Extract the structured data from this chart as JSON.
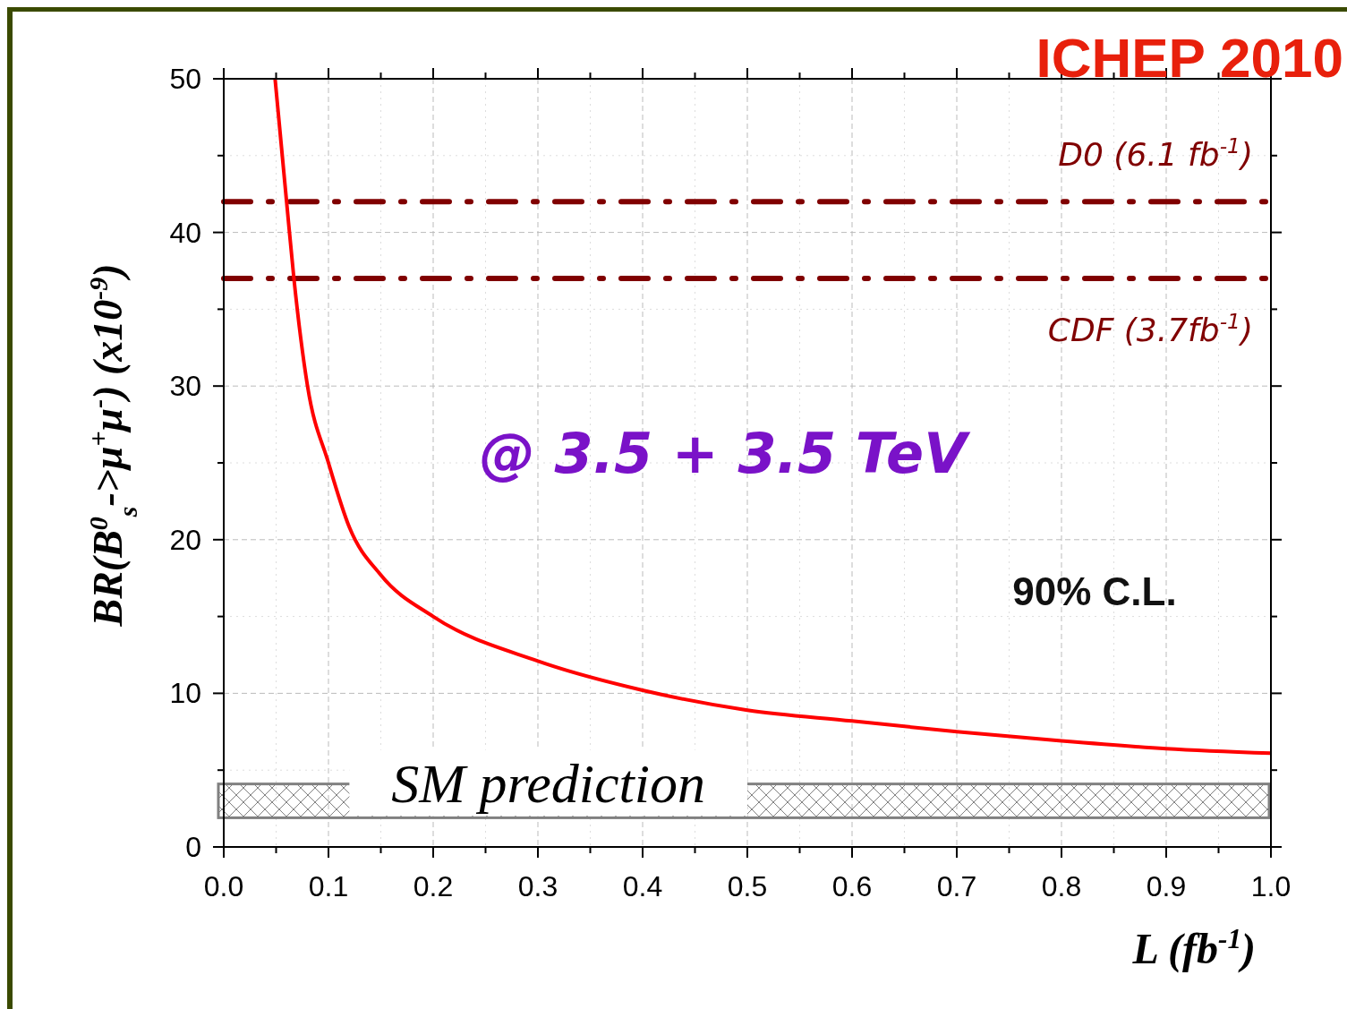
{
  "chart_data": {
    "type": "line",
    "title": "ICHEP 2010",
    "xlabel": "L (fb$^{-1}$)",
    "ylabel": "BR(B$^{0}$$_{s}$->μ$^{+}$μ$^{-}$)  (x10$^{-9}$)",
    "annotations": [
      "@ 3.5 + 3.5 TeV",
      "90% C.L."
    ],
    "x": [
      0.049,
      0.06,
      0.067,
      0.08,
      0.1,
      0.12,
      0.15,
      0.2,
      0.3,
      0.4,
      0.5,
      0.6,
      0.7,
      0.8,
      0.9,
      1.0
    ],
    "series": [
      {
        "color": "#ff0000",
        "values": [
          50,
          42,
          37,
          30,
          25,
          20.8,
          17.7,
          15,
          12.1,
          10.2,
          8.9,
          8.2,
          7.5,
          6.9,
          6.4,
          6.1
        ]
      }
    ],
    "xlim": [
      0,
      1
    ],
    "ylim": [
      0,
      50
    ],
    "xticks": [
      {
        "value": 0,
        "label": "0.0"
      },
      0.1,
      0.2,
      0.3,
      0.4,
      0.5,
      0.6,
      0.7,
      0.8,
      0.9,
      {
        "value": 1,
        "label": "1.0"
      }
    ],
    "yticks": [
      0,
      10,
      20,
      30,
      40,
      50
    ],
    "ref_lines": [
      {
        "axis": "y",
        "value": 42,
        "label": "D0 (6.1 fb$^{-1}$)",
        "color": "#800000",
        "line_style": "dashdot"
      },
      {
        "axis": "y",
        "value": 37,
        "label": "CDF  (3.7fb$^{-1}$)",
        "color": "#800000",
        "line_style": "dashdot"
      }
    ],
    "bands": [
      {
        "axis": "y",
        "from": 1.9,
        "to": 4.1,
        "label": "SM prediction",
        "color": "#808080"
      }
    ],
    "grid": true,
    "marker": "none",
    "line_style": "solid"
  }
}
